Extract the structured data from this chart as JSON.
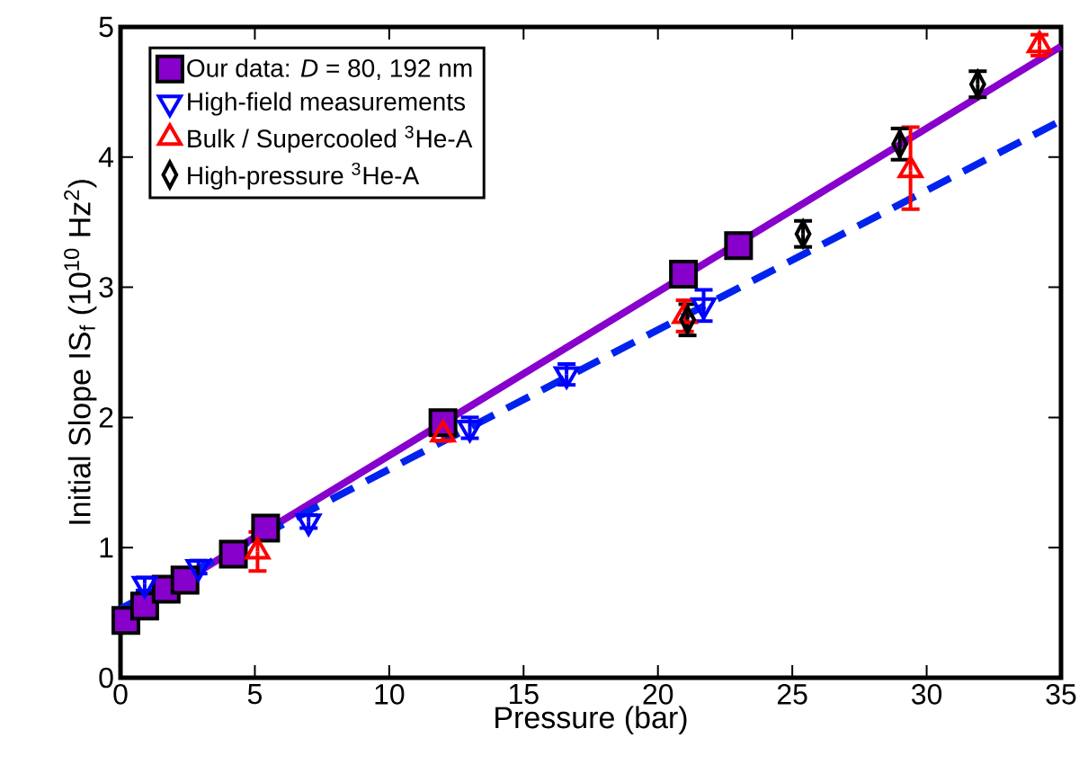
{
  "chart_data": {
    "type": "scatter",
    "xlabel": "Pressure (bar)",
    "ylabel": "Initial Slope IS$_{f}$ (10$^{10}$ Hz$^{2}$)",
    "xlim": [
      0,
      35
    ],
    "ylim": [
      0,
      5
    ],
    "xticks": [
      0,
      5,
      10,
      15,
      20,
      25,
      30,
      35
    ],
    "yticks": [
      0,
      1,
      2,
      3,
      4,
      5
    ],
    "legend": "top left",
    "grid": false,
    "series": [
      {
        "type": "line",
        "color": "#8800cc",
        "line_style": "solid",
        "marker": "none",
        "x": [
          0,
          35
        ],
        "values": [
          0.45,
          4.85
        ]
      },
      {
        "type": "line",
        "color": "#0022ee",
        "line_style": "dashed",
        "marker": "none",
        "x": [
          0,
          35
        ],
        "values": [
          0.53,
          4.28
        ]
      },
      {
        "name": "Our data: *D* = 80, 192 nm",
        "color": "#8800cc",
        "marker": "square",
        "x": [
          0.2,
          0.9,
          1.7,
          2.4,
          4.2,
          5.4,
          12.0,
          20.95,
          23.0
        ],
        "values": [
          0.44,
          0.55,
          0.68,
          0.75,
          0.95,
          1.15,
          1.96,
          3.1,
          3.32
        ]
      },
      {
        "name": "High-field measurements",
        "color": "#0000ff",
        "marker": "triangle_down",
        "x": [
          0.9,
          2.9,
          7.0,
          13.0,
          16.6,
          21.7
        ],
        "values": [
          0.72,
          0.85,
          1.2,
          1.92,
          2.33,
          2.86
        ],
        "errors": [
          0.05,
          0.05,
          0.05,
          0.08,
          0.08,
          0.12
        ]
      },
      {
        "name": "Bulk / Supercooled $^{3}$He-A",
        "color": "#ff0000",
        "marker": "triangle",
        "x": [
          5.1,
          12.0,
          21.0,
          29.4,
          34.2
        ],
        "values": [
          0.97,
          1.87,
          2.78,
          3.9,
          4.86
        ],
        "errors": [
          0.15,
          0.05,
          0.12,
          [
            3.6,
            4.23
          ],
          0.08
        ]
      },
      {
        "name": "High-pressure $^{3}$He-A",
        "color": "#000000",
        "marker": "diamond",
        "x": [
          21.1,
          25.4,
          29.0,
          31.9
        ],
        "values": [
          2.75,
          3.41,
          4.1,
          4.56
        ],
        "errors": [
          0.12,
          0.1,
          0.12,
          0.1
        ]
      }
    ]
  }
}
